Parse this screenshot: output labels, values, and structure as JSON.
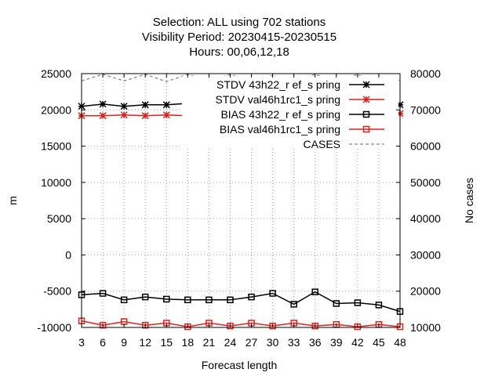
{
  "chart_data": {
    "type": "line",
    "title_lines": [
      "Selection: ALL using   702 stations",
      "Visibility   Period: 20230415-20230515",
      "Hours:  00,06,12,18"
    ],
    "xlabel": "Forecast length",
    "ylabel": "m",
    "y2label": "No cases",
    "x": [
      3,
      6,
      9,
      12,
      15,
      18,
      21,
      24,
      27,
      30,
      33,
      36,
      39,
      42,
      45,
      48
    ],
    "xticks": [
      3,
      6,
      9,
      12,
      15,
      18,
      21,
      24,
      27,
      30,
      33,
      36,
      39,
      42,
      45,
      48
    ],
    "xlim": [
      3,
      48
    ],
    "ylim": [
      -10000,
      25000
    ],
    "yticks": [
      -10000,
      -5000,
      0,
      5000,
      10000,
      15000,
      20000,
      25000
    ],
    "y2lim": [
      10000,
      80000
    ],
    "y2ticks": [
      10000,
      20000,
      30000,
      40000,
      50000,
      60000,
      70000,
      80000
    ],
    "grid": true,
    "legend_position": "top-right",
    "series": [
      {
        "name": "STDV 43h22_ref_spring",
        "legend_label": "STDV 43h22_r ef_s pring",
        "axis": "y1",
        "color": "#000000",
        "marker": "star",
        "dash": "solid",
        "values": [
          20500,
          20800,
          20500,
          20700,
          20700,
          20900,
          20700,
          20800,
          21000,
          21200,
          20900,
          21300,
          20900,
          21000,
          21000,
          20700
        ]
      },
      {
        "name": "STDV val46h1rc1_spring",
        "legend_label": "STDV val46h1rc1_s pring",
        "axis": "y1",
        "color": "#e0201b",
        "marker": "star",
        "dash": "solid",
        "values": [
          19200,
          19200,
          19300,
          19200,
          19300,
          19200,
          19300,
          19300,
          19300,
          19400,
          19300,
          19400,
          19300,
          19400,
          19400,
          19500
        ]
      },
      {
        "name": "BIAS 43h22_ref_spring",
        "legend_label": "BIAS 43h22_r ef_s pring",
        "axis": "y1",
        "color": "#000000",
        "marker": "square",
        "dash": "solid",
        "values": [
          -5500,
          -5300,
          -6200,
          -5800,
          -6100,
          -6200,
          -6200,
          -6200,
          -5800,
          -5300,
          -6800,
          -5100,
          -6700,
          -6600,
          -6900,
          -7800
        ]
      },
      {
        "name": "BIAS val46h1rc1_spring",
        "legend_label": "BIAS val46h1rc1_s pring",
        "axis": "y1",
        "color": "#e0201b",
        "marker": "square",
        "dash": "solid",
        "values": [
          -9100,
          -9700,
          -9200,
          -9700,
          -9400,
          -9900,
          -9400,
          -9800,
          -9400,
          -9800,
          -9400,
          -9800,
          -9600,
          -9900,
          -9600,
          -9900
        ]
      },
      {
        "name": "CASES",
        "legend_label": "CASES",
        "axis": "y2",
        "color": "#999999",
        "marker": "none",
        "dash": "dashed",
        "values": [
          78000,
          79800,
          78000,
          79800,
          77800,
          79800,
          77900,
          79800,
          77800,
          79500,
          78000,
          79800,
          77900,
          79800,
          76500,
          78200
        ]
      }
    ]
  }
}
